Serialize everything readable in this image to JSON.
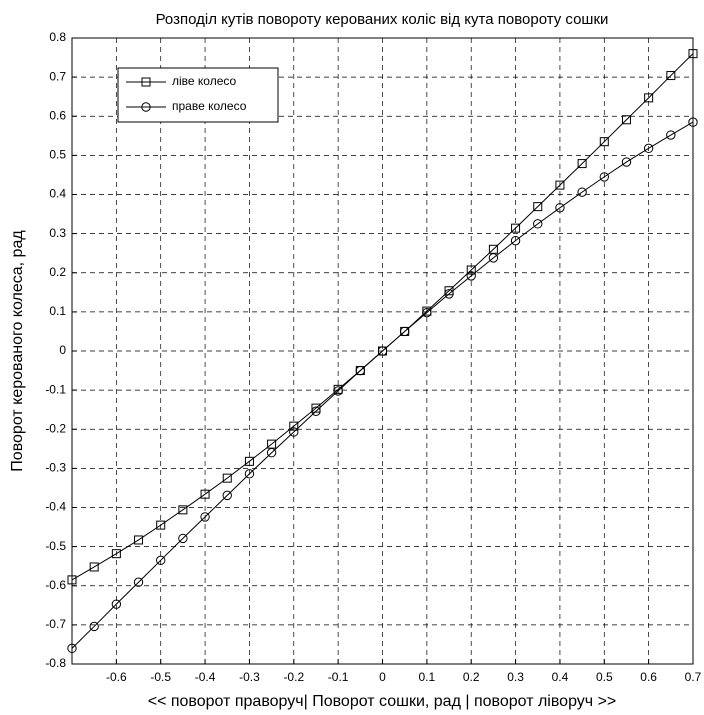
{
  "chart_data": {
    "type": "line",
    "title": "Розподіл кутів повороту керованих коліс від кута повороту сошки",
    "x_label": "<< поворот праворуч|  Поворот сошки, рад  | поворот ліворуч >>",
    "y_label": "Поворот  керованого колеса, рад",
    "x": [
      -0.7,
      -0.65,
      -0.6,
      -0.55,
      -0.5,
      -0.45,
      -0.4,
      -0.35,
      -0.3,
      -0.25,
      -0.2,
      -0.15,
      -0.1,
      -0.05,
      0,
      0.05,
      0.1,
      0.15,
      0.2,
      0.25,
      0.3,
      0.35,
      0.4,
      0.45,
      0.5,
      0.55,
      0.6,
      0.65,
      0.7
    ],
    "series": [
      {
        "name": "ліве колесо",
        "color": "#000000",
        "marker": "square",
        "values": [
          -0.585,
          -0.552,
          -0.518,
          -0.483,
          -0.445,
          -0.406,
          -0.366,
          -0.325,
          -0.282,
          -0.238,
          -0.192,
          -0.146,
          -0.098,
          -0.05,
          0,
          0.05,
          0.102,
          0.154,
          0.207,
          0.26,
          0.314,
          0.369,
          0.424,
          0.479,
          0.535,
          0.591,
          0.647,
          0.704,
          0.76
        ]
      },
      {
        "name": "праве колесо",
        "color": "#000000",
        "marker": "circle",
        "values": [
          -0.76,
          -0.704,
          -0.647,
          -0.591,
          -0.535,
          -0.479,
          -0.424,
          -0.369,
          -0.314,
          -0.26,
          -0.207,
          -0.154,
          -0.102,
          -0.05,
          0,
          0.05,
          0.098,
          0.146,
          0.192,
          0.238,
          0.282,
          0.325,
          0.366,
          0.406,
          0.445,
          0.483,
          0.518,
          0.552,
          0.585
        ]
      }
    ],
    "xlim": [
      -0.7,
      0.7
    ],
    "ylim": [
      -0.8,
      0.8
    ],
    "xticks": [
      -0.6,
      -0.5,
      -0.4,
      -0.3,
      -0.2,
      -0.1,
      0,
      0.1,
      0.2,
      0.3,
      0.4,
      0.5,
      0.6,
      0.7
    ],
    "yticks": [
      -0.8,
      -0.7,
      -0.6,
      -0.5,
      -0.4,
      -0.3,
      -0.2,
      -0.1,
      0,
      0.1,
      0.2,
      0.3,
      0.4,
      0.5,
      0.6,
      0.7,
      0.8
    ],
    "grid": true,
    "legend": "upper left"
  }
}
